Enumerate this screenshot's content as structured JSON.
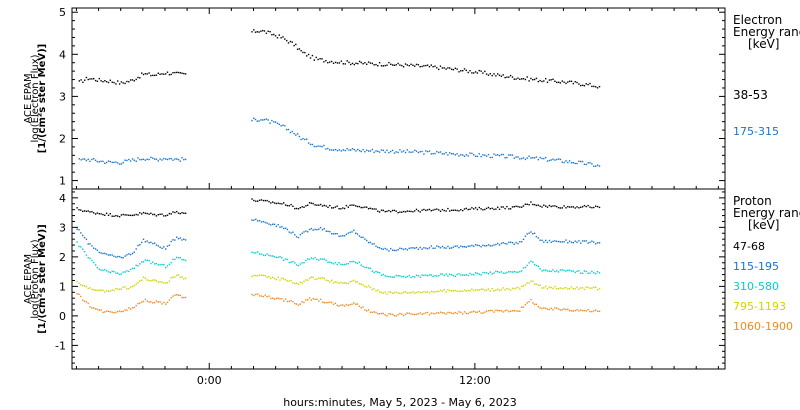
{
  "chart_data": [
    {
      "type": "scatter",
      "panel": "electron",
      "ylabel": [
        "ACE EPAM",
        "log(Electron Flux)",
        "[1/(cm²s ster MeV)]"
      ],
      "ylim": [
        0.8,
        5.1
      ],
      "yticks": [
        1,
        2,
        3,
        4,
        5
      ],
      "legend_title": [
        "Electron",
        "Energy range",
        "[keV]"
      ],
      "legend_placement": "right",
      "x_unit": "hours from 0:00 May 6, 2023",
      "series": [
        {
          "name": "38-53",
          "color": "#000000",
          "segments": [
            {
              "x": [
                -5.9,
                -5.5,
                -5.0,
                -4.5,
                -4.0,
                -3.5,
                -3.0,
                -2.5,
                -2.0,
                -1.5,
                -1.1
              ],
              "y": [
                3.35,
                3.45,
                3.4,
                3.38,
                3.33,
                3.4,
                3.55,
                3.52,
                3.58,
                3.55,
                3.55
              ]
            },
            {
              "x": [
                1.9,
                2.3,
                2.8,
                3.3,
                3.8,
                4.2,
                4.8,
                5.5,
                6.2,
                7.0,
                8.0,
                9.0,
                10.0,
                11.0,
                12.0,
                13.0,
                14.0,
                15.0,
                16.0,
                17.0,
                17.6
              ],
              "y": [
                4.55,
                4.58,
                4.5,
                4.4,
                4.25,
                4.05,
                3.9,
                3.85,
                3.82,
                3.8,
                3.78,
                3.75,
                3.72,
                3.66,
                3.6,
                3.52,
                3.45,
                3.4,
                3.36,
                3.3,
                3.25
              ]
            }
          ]
        },
        {
          "name": "175-315",
          "color": "#1874CD",
          "segments": [
            {
              "x": [
                -5.9,
                -5.5,
                -5.0,
                -4.5,
                -4.0,
                -3.5,
                -3.0,
                -2.5,
                -2.0,
                -1.5,
                -1.1
              ],
              "y": [
                1.5,
                1.52,
                1.48,
                1.45,
                1.45,
                1.5,
                1.55,
                1.52,
                1.55,
                1.52,
                1.52
              ]
            },
            {
              "x": [
                1.9,
                2.3,
                2.8,
                3.3,
                3.8,
                4.2,
                4.8,
                5.5,
                6.2,
                7.0,
                8.0,
                9.0,
                10.0,
                11.0,
                12.0,
                13.0,
                14.0,
                15.0,
                16.0,
                17.0,
                17.6
              ],
              "y": [
                2.45,
                2.48,
                2.4,
                2.3,
                2.15,
                2.0,
                1.85,
                1.78,
                1.75,
                1.73,
                1.72,
                1.7,
                1.68,
                1.65,
                1.62,
                1.6,
                1.57,
                1.53,
                1.48,
                1.42,
                1.36
              ]
            }
          ]
        }
      ]
    },
    {
      "type": "scatter",
      "panel": "proton",
      "ylabel": [
        "ACE EPAM",
        "log(Proton Flux)",
        "[1/(cm²s ster MeV)]"
      ],
      "ylim": [
        -1.8,
        4.3
      ],
      "yticks": [
        -1,
        0,
        1,
        2,
        3,
        4
      ],
      "legend_title": [
        "Proton",
        "Energy range",
        "[keV]"
      ],
      "legend_placement": "right",
      "xlabel": "hours:minutes, May  5, 2023 - May  6, 2023",
      "xticks": [
        {
          "x": 0,
          "label": "0:00"
        },
        {
          "x": 12,
          "label": "12:00"
        }
      ],
      "xlim": [
        -6.2,
        23.3
      ],
      "x_unit": "hours from 0:00 May 6, 2023",
      "series": [
        {
          "name": "47-68",
          "color": "#000000",
          "segments": [
            {
              "x": [
                -6.0,
                -5.5,
                -5.0,
                -4.5,
                -4.0,
                -3.5,
                -3.0,
                -2.5,
                -2.0,
                -1.5,
                -1.1
              ],
              "y": [
                3.65,
                3.55,
                3.5,
                3.45,
                3.42,
                3.45,
                3.5,
                3.45,
                3.45,
                3.55,
                3.5
              ]
            },
            {
              "x": [
                1.9,
                2.5,
                3.0,
                3.5,
                4.0,
                4.5,
                5.0,
                5.5,
                6.0,
                6.5,
                7.0,
                7.5,
                8.0,
                9.0,
                10.0,
                11.0,
                12.0,
                13.0,
                14.0,
                14.5,
                15.0,
                16.0,
                17.0,
                17.6
              ],
              "y": [
                3.95,
                3.9,
                3.85,
                3.8,
                3.65,
                3.82,
                3.78,
                3.72,
                3.68,
                3.8,
                3.7,
                3.6,
                3.55,
                3.58,
                3.6,
                3.62,
                3.65,
                3.68,
                3.7,
                3.85,
                3.75,
                3.72,
                3.72,
                3.7
              ]
            }
          ]
        },
        {
          "name": "115-195",
          "color": "#1874CD",
          "segments": [
            {
              "x": [
                -6.0,
                -5.5,
                -5.0,
                -4.5,
                -4.0,
                -3.5,
                -3.0,
                -2.5,
                -2.0,
                -1.5,
                -1.1
              ],
              "y": [
                3.0,
                2.5,
                2.2,
                2.05,
                2.0,
                2.15,
                2.6,
                2.45,
                2.3,
                2.7,
                2.6
              ]
            },
            {
              "x": [
                1.9,
                2.5,
                3.0,
                3.5,
                4.0,
                4.5,
                5.0,
                5.5,
                6.0,
                6.5,
                7.0,
                7.5,
                8.0,
                9.0,
                10.0,
                11.0,
                12.0,
                13.0,
                14.0,
                14.5,
                15.0,
                16.0,
                17.0,
                17.6
              ],
              "y": [
                3.3,
                3.2,
                3.1,
                2.95,
                2.7,
                2.95,
                3.0,
                2.85,
                2.7,
                2.9,
                2.6,
                2.4,
                2.25,
                2.3,
                2.35,
                2.35,
                2.4,
                2.45,
                2.5,
                2.9,
                2.55,
                2.55,
                2.52,
                2.5
              ]
            }
          ]
        },
        {
          "name": "310-580",
          "color": "#00CED1",
          "segments": [
            {
              "x": [
                -6.0,
                -5.5,
                -5.0,
                -4.5,
                -4.0,
                -3.5,
                -3.0,
                -2.5,
                -2.0,
                -1.5,
                -1.1
              ],
              "y": [
                2.5,
                2.0,
                1.6,
                1.5,
                1.45,
                1.6,
                1.9,
                1.8,
                1.7,
                2.0,
                1.9
              ]
            },
            {
              "x": [
                1.9,
                2.5,
                3.0,
                3.5,
                4.0,
                4.5,
                5.0,
                5.5,
                6.0,
                6.5,
                7.0,
                7.5,
                8.0,
                9.0,
                10.0,
                11.0,
                12.0,
                13.0,
                14.0,
                14.5,
                15.0,
                16.0,
                17.0,
                17.6
              ],
              "y": [
                2.2,
                2.1,
                2.05,
                1.9,
                1.75,
                1.95,
                1.95,
                1.85,
                1.75,
                1.9,
                1.7,
                1.5,
                1.35,
                1.35,
                1.4,
                1.4,
                1.45,
                1.5,
                1.5,
                1.9,
                1.55,
                1.55,
                1.5,
                1.48
              ]
            }
          ]
        },
        {
          "name": "795-1193",
          "color": "#D2D200",
          "segments": [
            {
              "x": [
                -6.0,
                -5.5,
                -5.0,
                -4.5,
                -4.0,
                -3.5,
                -3.0,
                -2.5,
                -2.0,
                -1.5,
                -1.1
              ],
              "y": [
                1.2,
                0.95,
                0.85,
                0.9,
                0.95,
                1.0,
                1.3,
                1.2,
                1.15,
                1.4,
                1.3
              ]
            },
            {
              "x": [
                1.9,
                2.5,
                3.0,
                3.5,
                4.0,
                4.5,
                5.0,
                5.5,
                6.0,
                6.5,
                7.0,
                7.5,
                8.0,
                9.0,
                10.0,
                11.0,
                12.0,
                13.0,
                14.0,
                14.5,
                15.0,
                16.0,
                17.0,
                17.6
              ],
              "y": [
                1.4,
                1.35,
                1.3,
                1.25,
                1.1,
                1.3,
                1.3,
                1.2,
                1.1,
                1.2,
                1.05,
                0.9,
                0.8,
                0.82,
                0.85,
                0.88,
                0.9,
                0.92,
                0.95,
                1.2,
                0.98,
                0.98,
                0.96,
                0.95
              ]
            }
          ]
        },
        {
          "name": "1060-1900",
          "color": "#EE8A1E",
          "segments": [
            {
              "x": [
                -6.0,
                -5.5,
                -5.0,
                -4.5,
                -4.0,
                -3.5,
                -3.0,
                -2.5,
                -2.0,
                -1.5,
                -1.1
              ],
              "y": [
                0.8,
                0.4,
                0.2,
                0.15,
                0.2,
                0.3,
                0.55,
                0.5,
                0.45,
                0.75,
                0.65
              ]
            },
            {
              "x": [
                1.9,
                2.5,
                3.0,
                3.5,
                4.0,
                4.5,
                5.0,
                5.5,
                6.0,
                6.5,
                7.0,
                7.5,
                8.0,
                9.0,
                10.0,
                11.0,
                12.0,
                13.0,
                14.0,
                14.5,
                15.0,
                16.0,
                17.0,
                17.6
              ],
              "y": [
                0.75,
                0.7,
                0.6,
                0.55,
                0.4,
                0.6,
                0.55,
                0.45,
                0.35,
                0.45,
                0.25,
                0.1,
                0.05,
                0.08,
                0.1,
                0.12,
                0.15,
                0.18,
                0.22,
                0.55,
                0.25,
                0.25,
                0.2,
                0.18
              ]
            }
          ]
        }
      ]
    }
  ]
}
